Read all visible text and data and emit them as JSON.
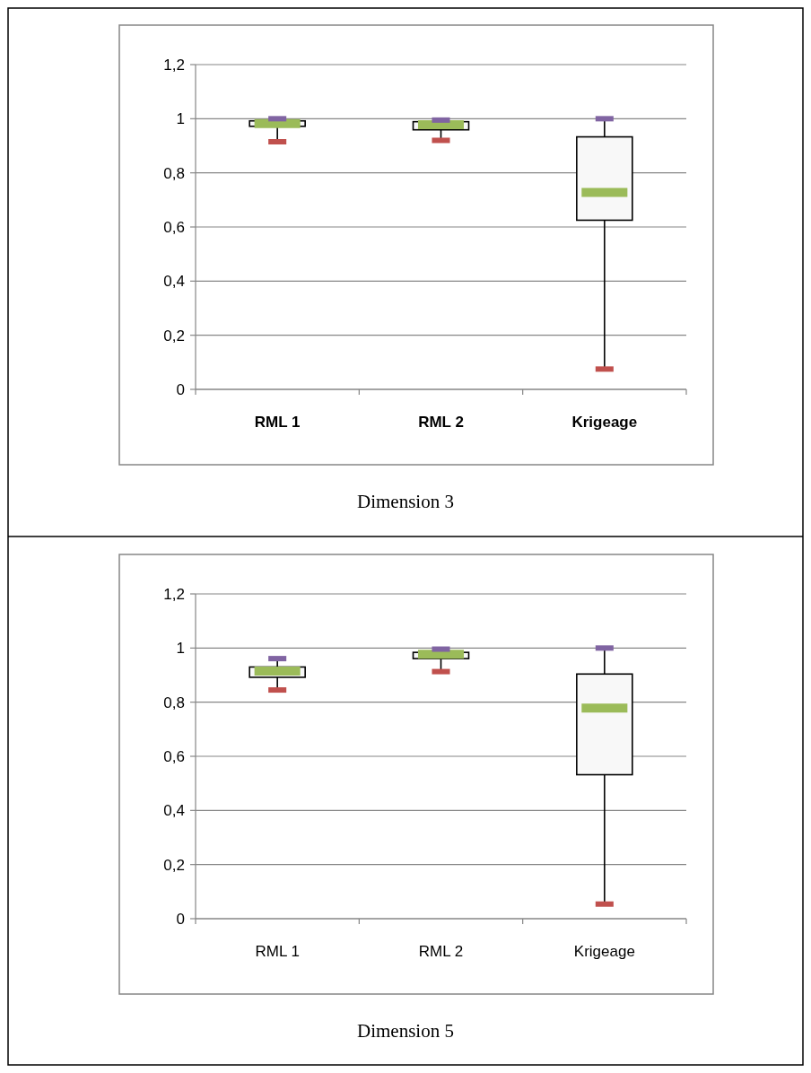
{
  "chart_data": [
    {
      "type": "box",
      "title": "Dimension 3",
      "categories": [
        "RML 1",
        "RML 2",
        "Krigeage"
      ],
      "boxes": [
        {
          "low": 0.915,
          "q1": 0.972,
          "median": 0.982,
          "q3": 0.992,
          "high": 1.0
        },
        {
          "low": 0.92,
          "q1": 0.959,
          "median": 0.978,
          "q3": 0.989,
          "high": 0.995
        },
        {
          "low": 0.075,
          "q1": 0.625,
          "median": 0.728,
          "q3": 0.933,
          "high": 1.0
        }
      ],
      "ylim": [
        0,
        1.2
      ],
      "yticks": [
        {
          "value": 0,
          "label": "0"
        },
        {
          "value": 0.2,
          "label": "0,2"
        },
        {
          "value": 0.4,
          "label": "0,4"
        },
        {
          "value": 0.6,
          "label": "0,6"
        },
        {
          "value": 0.8,
          "label": "0,8"
        },
        {
          "value": 1,
          "label": "1"
        },
        {
          "value": 1.2,
          "label": "1,2"
        }
      ],
      "grid": "y"
    },
    {
      "type": "box",
      "title": "Dimension 5",
      "categories": [
        "RML 1",
        "RML 2",
        "Krigeage"
      ],
      "boxes": [
        {
          "low": 0.845,
          "q1": 0.892,
          "median": 0.915,
          "q3": 0.93,
          "high": 0.961
        },
        {
          "low": 0.913,
          "q1": 0.961,
          "median": 0.977,
          "q3": 0.984,
          "high": 0.996
        },
        {
          "low": 0.054,
          "q1": 0.532,
          "median": 0.778,
          "q3": 0.904,
          "high": 1.0
        }
      ],
      "ylim": [
        0,
        1.2
      ],
      "yticks": [
        {
          "value": 0,
          "label": "0"
        },
        {
          "value": 0.2,
          "label": "0,2"
        },
        {
          "value": 0.4,
          "label": "0,4"
        },
        {
          "value": 0.6,
          "label": "0,6"
        },
        {
          "value": 0.8,
          "label": "0,8"
        },
        {
          "value": 1,
          "label": "1"
        },
        {
          "value": 1.2,
          "label": "1,2"
        }
      ],
      "grid": "y"
    }
  ]
}
